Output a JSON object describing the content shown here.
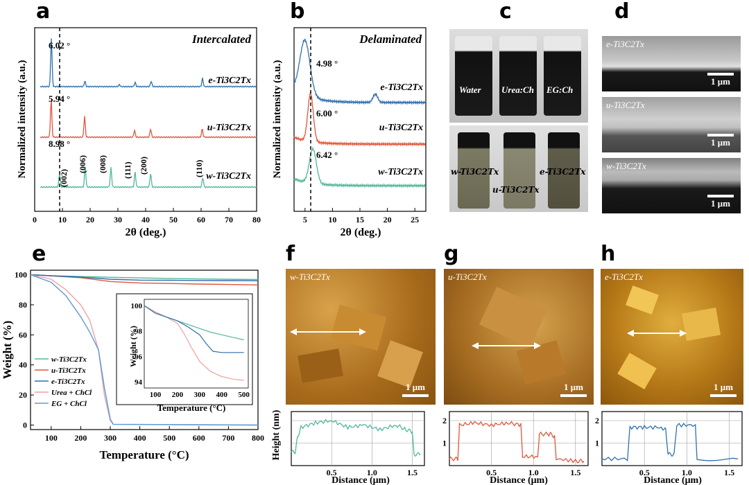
{
  "panels": {
    "a": {
      "letter": "a",
      "tag": "Intercalated",
      "ylabel": "Normalized intensity (a.u.)",
      "xlabel": "2θ (deg.)",
      "peaks": [
        "6.02 °",
        "5.94 °",
        "8.98 °"
      ],
      "miller": [
        "(002)",
        "(006)",
        "(008)",
        "(111)",
        "(200)",
        "(110)"
      ],
      "series_labels": [
        "e-Ti3C2Tx",
        "u-Ti3C2Tx",
        "w-Ti3C2Tx"
      ]
    },
    "b": {
      "letter": "b",
      "tag": "Delaminated",
      "ylabel": "Normalized intensity (a.u.)",
      "xlabel": "2θ (deg.)",
      "peaks": [
        "4.98 °",
        "6.00 °",
        "6.42 °"
      ],
      "series_labels": [
        "e-Ti3C2Tx",
        "u-Ti3C2Tx",
        "w-Ti3C2Tx"
      ]
    },
    "c": {
      "letter": "c",
      "top_labels": [
        "Water",
        "Urea:Ch",
        "EG:Ch"
      ],
      "bottom_labels": [
        "w-Ti3C2Tx",
        "u-Ti3C2Tx",
        "e-Ti3C2Tx"
      ]
    },
    "d": {
      "letter": "d",
      "labels": [
        "e-Ti3C2Tx",
        "u-Ti3C2Tx",
        "w-Ti3C2Tx"
      ],
      "scale": "1 μm"
    },
    "e": {
      "letter": "e",
      "ylabel": "Weight (%)",
      "xlabel": "Temperature (°C)",
      "inset_ylabel": "Weight (%)",
      "inset_xlabel": "Temperature (°C)",
      "legend": [
        "w-Ti3C2Tx",
        "u-Ti3C2Tx",
        "e-Ti3C2Tx",
        "Urea + ChCl",
        "EG + ChCl"
      ]
    },
    "f": {
      "letter": "f",
      "label": "w-Ti3C2Tx",
      "scale": "1 μm"
    },
    "g": {
      "letter": "g",
      "label": "u-Ti3C2Tx",
      "scale": "1 μm"
    },
    "h": {
      "letter": "h",
      "label": "e-Ti3C2Tx",
      "scale": "1 μm"
    },
    "profiles": {
      "ylabel": "Height (nm)",
      "xlabel": "Distance (μm)"
    }
  },
  "colors": {
    "w": "#4fb89a",
    "u": "#e2553b",
    "e": "#2f6fae",
    "urea": "#f2a0a0",
    "eg": "#5a9bd8",
    "afm": "#b7771a"
  },
  "chart_data": [
    {
      "type": "line",
      "panel": "a",
      "title": "Intercalated",
      "xlabel": "2θ (deg.)",
      "ylabel": "Normalized intensity (a.u.)",
      "xlim": [
        0,
        80
      ],
      "xticks": [
        0,
        10,
        20,
        30,
        40,
        50,
        60,
        70,
        80
      ],
      "series": [
        {
          "name": "e-Ti3C2Tx",
          "peaks_x": [
            6.02,
            18.1,
            30.5,
            36.2,
            42.0,
            60.5
          ]
        },
        {
          "name": "u-Ti3C2Tx",
          "peaks_x": [
            5.94,
            18.0,
            36.0,
            41.8,
            60.4
          ]
        },
        {
          "name": "w-Ti3C2Tx",
          "peaks_x": [
            8.98,
            18.2,
            27.5,
            36.2,
            41.8,
            60.6
          ]
        }
      ]
    },
    {
      "type": "line",
      "panel": "b",
      "title": "Delaminated",
      "xlabel": "2θ (deg.)",
      "ylabel": "Normalized intensity (a.u.)",
      "xlim": [
        3,
        27
      ],
      "xticks": [
        5,
        10,
        15,
        20,
        25
      ],
      "series": [
        {
          "name": "e-Ti3C2Tx",
          "peaks_x": [
            4.98,
            17.8
          ]
        },
        {
          "name": "u-Ti3C2Tx",
          "peaks_x": [
            6.0
          ]
        },
        {
          "name": "w-Ti3C2Tx",
          "peaks_x": [
            6.42
          ]
        }
      ]
    },
    {
      "type": "line",
      "panel": "e",
      "xlabel": "Temperature (°C)",
      "ylabel": "Weight (%)",
      "xlim": [
        30,
        800
      ],
      "ylim": [
        -3,
        103
      ],
      "xticks": [
        100,
        200,
        300,
        400,
        500,
        600,
        700,
        800
      ],
      "yticks": [
        0,
        20,
        40,
        60,
        80,
        100
      ],
      "series": [
        {
          "name": "w-Ti3C2Tx",
          "x": [
            30,
            100,
            200,
            300,
            400,
            500,
            600,
            700,
            800
          ],
          "y": [
            100,
            99.3,
            98.8,
            98.3,
            97.9,
            97.5,
            97.2,
            97.0,
            96.8
          ]
        },
        {
          "name": "u-Ti3C2Tx",
          "x": [
            30,
            100,
            200,
            300,
            400,
            500,
            600,
            700,
            800
          ],
          "y": [
            100,
            99.2,
            98.0,
            95.5,
            94.5,
            94.2,
            93.8,
            93.5,
            93.2
          ]
        },
        {
          "name": "e-Ti3C2Tx",
          "x": [
            30,
            100,
            200,
            300,
            400,
            500,
            600,
            700,
            800
          ],
          "y": [
            100,
            99.3,
            98.4,
            97.0,
            96.4,
            96.3,
            96.2,
            96.1,
            96.0
          ]
        },
        {
          "name": "Urea + ChCl",
          "x": [
            30,
            100,
            150,
            200,
            230,
            260,
            280,
            300,
            310,
            800
          ],
          "y": [
            100,
            97,
            90,
            80,
            70,
            50,
            20,
            3,
            0.5,
            0
          ]
        },
        {
          "name": "EG + ChCl",
          "x": [
            30,
            100,
            150,
            200,
            230,
            260,
            280,
            300,
            310,
            800
          ],
          "y": [
            100,
            95,
            86,
            72,
            62,
            50,
            25,
            4,
            0.5,
            0
          ]
        }
      ],
      "inset": {
        "xlim": [
          50,
          520
        ],
        "ylim": [
          93.5,
          100.5
        ],
        "xticks": [
          100,
          200,
          300,
          400,
          500
        ],
        "yticks": [
          94,
          96,
          98,
          100
        ],
        "series": [
          {
            "name": "w-Ti3C2Tx",
            "x": [
              50,
              100,
              150,
              200,
              250,
              300,
              350,
              400,
              450,
              500
            ],
            "y": [
              100,
              99.5,
              99.1,
              98.8,
              98.5,
              98.2,
              97.9,
              97.7,
              97.5,
              97.3
            ]
          },
          {
            "name": "u-Ti3C2Tx",
            "x": [
              50,
              100,
              150,
              200,
              230,
              260,
              300,
              350,
              400,
              450,
              500
            ],
            "y": [
              100,
              99.5,
              99.1,
              98.6,
              97.8,
              96.8,
              95.6,
              94.8,
              94.4,
              94.2,
              94.1
            ]
          },
          {
            "name": "e-Ti3C2Tx",
            "x": [
              50,
              100,
              150,
              200,
              250,
              300,
              330,
              360,
              400,
              450,
              500
            ],
            "y": [
              100,
              99.4,
              99.1,
              98.8,
              98.3,
              97.7,
              97.0,
              96.4,
              96.3,
              96.3,
              96.3
            ]
          }
        ]
      }
    },
    {
      "type": "line",
      "panel": "f-profile",
      "xlabel": "Distance (μm)",
      "ylabel": "Height (nm)",
      "xlim": [
        0,
        1.65
      ],
      "ylim": [
        0,
        2.4
      ],
      "series": [
        {
          "name": "w-Ti3C2Tx",
          "x": [
            0.0,
            0.05,
            0.08,
            0.12,
            0.3,
            0.5,
            0.7,
            0.9,
            1.1,
            1.3,
            1.42,
            1.5,
            1.52,
            1.6
          ],
          "y": [
            0.6,
            0.6,
            1.3,
            1.7,
            1.9,
            2.0,
            1.7,
            1.8,
            1.6,
            1.8,
            1.6,
            1.5,
            0.5,
            0.5
          ]
        }
      ]
    },
    {
      "type": "line",
      "panel": "g-profile",
      "xlabel": "Distance (μm)",
      "ylabel": "Height (nm)",
      "xlim": [
        0,
        1.65
      ],
      "ylim": [
        0,
        2.4
      ],
      "yticks": [
        1,
        2
      ],
      "series": [
        {
          "name": "u-Ti3C2Tx",
          "x": [
            0.0,
            0.1,
            0.12,
            0.3,
            0.5,
            0.7,
            0.85,
            0.87,
            1.05,
            1.07,
            1.2,
            1.25,
            1.27,
            1.5,
            1.6
          ],
          "y": [
            0.3,
            0.3,
            1.8,
            1.9,
            1.8,
            1.9,
            1.8,
            0.4,
            0.4,
            1.4,
            1.4,
            1.3,
            0.3,
            0.2,
            0.2
          ]
        }
      ]
    },
    {
      "type": "line",
      "panel": "h-profile",
      "xlabel": "Distance (μm)",
      "ylabel": "Height (nm)",
      "xlim": [
        0,
        1.65
      ],
      "ylim": [
        0,
        2.4
      ],
      "yticks": [
        1,
        2
      ],
      "series": [
        {
          "name": "e-Ti3C2Tx",
          "x": [
            0.0,
            0.3,
            0.33,
            0.5,
            0.7,
            0.75,
            0.78,
            0.85,
            0.88,
            1.1,
            1.12,
            1.6
          ],
          "y": [
            0.3,
            0.3,
            1.7,
            1.7,
            1.7,
            1.6,
            0.5,
            0.5,
            1.8,
            1.8,
            0.3,
            0.3
          ]
        }
      ]
    }
  ]
}
